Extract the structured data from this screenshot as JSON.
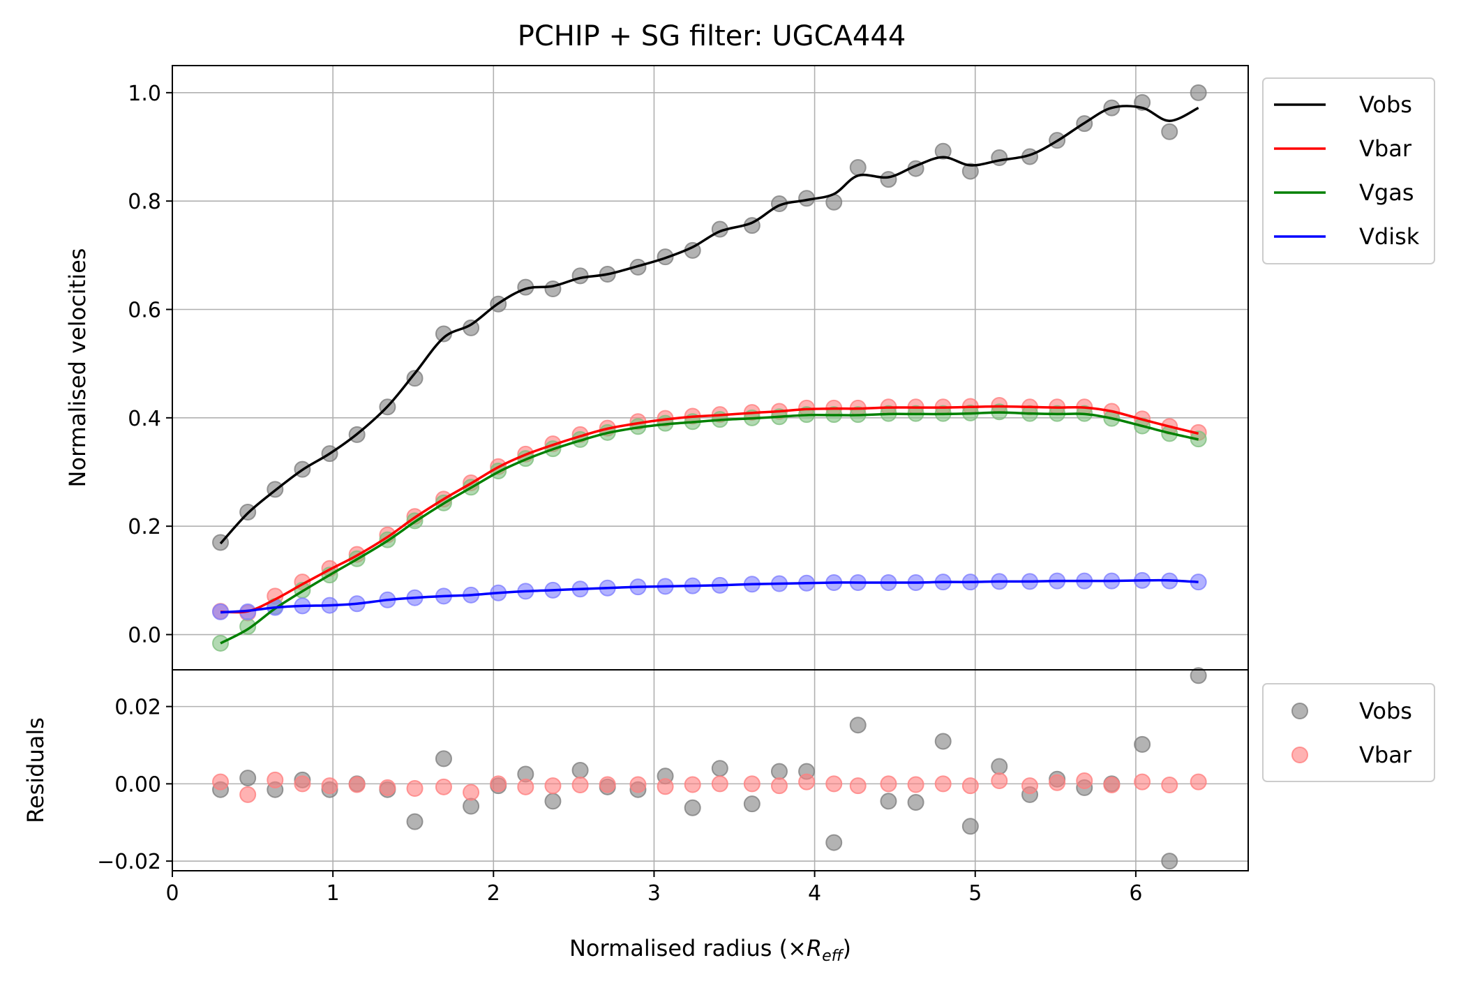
{
  "chart_data": [
    {
      "type": "line",
      "title": "PCHIP + SG filter: UGCA444",
      "xlabel": "Normalised radius (×R_eff)",
      "ylabel": "Normalised velocities",
      "xlim": [
        0,
        6.7
      ],
      "ylim": [
        -0.065,
        1.05
      ],
      "grid": true,
      "legend_position": "outside-right",
      "x_ticks": [
        "0",
        "1",
        "2",
        "3",
        "4",
        "5",
        "6"
      ],
      "y_ticks": [
        "0.0",
        "0.2",
        "0.4",
        "0.6",
        "0.8",
        "1.0"
      ],
      "x": [
        0.3,
        0.47,
        0.64,
        0.81,
        0.98,
        1.15,
        1.34,
        1.51,
        1.69,
        1.86,
        2.03,
        2.2,
        2.37,
        2.54,
        2.71,
        2.9,
        3.07,
        3.24,
        3.41,
        3.61,
        3.78,
        3.95,
        4.12,
        4.27,
        4.46,
        4.63,
        4.8,
        4.97,
        5.15,
        5.34,
        5.51,
        5.68,
        5.85,
        6.04,
        6.21,
        6.39
      ],
      "series": [
        {
          "name": "Vobs",
          "color": "#000000",
          "points": [
            0.17,
            0.226,
            0.268,
            0.305,
            0.334,
            0.369,
            0.42,
            0.473,
            0.555,
            0.566,
            0.61,
            0.641,
            0.638,
            0.662,
            0.665,
            0.678,
            0.697,
            0.709,
            0.748,
            0.755,
            0.795,
            0.805,
            0.798,
            0.862,
            0.84,
            0.86,
            0.892,
            0.855,
            0.88,
            0.882,
            0.912,
            0.943,
            0.972,
            0.982,
            0.928,
            1.0
          ],
          "line": [
            0.168,
            0.224,
            0.266,
            0.304,
            0.334,
            0.37,
            0.421,
            0.482,
            0.548,
            0.572,
            0.611,
            0.638,
            0.643,
            0.658,
            0.665,
            0.68,
            0.695,
            0.715,
            0.744,
            0.76,
            0.792,
            0.802,
            0.813,
            0.847,
            0.844,
            0.865,
            0.881,
            0.866,
            0.875,
            0.885,
            0.911,
            0.944,
            0.972,
            0.972,
            0.948,
            0.972
          ]
        },
        {
          "name": "Vbar",
          "color": "#ff0000",
          "points": [
            0.043,
            0.04,
            0.071,
            0.097,
            0.122,
            0.148,
            0.184,
            0.218,
            0.25,
            0.28,
            0.31,
            0.333,
            0.352,
            0.369,
            0.381,
            0.393,
            0.399,
            0.403,
            0.406,
            0.41,
            0.412,
            0.418,
            0.418,
            0.418,
            0.42,
            0.42,
            0.42,
            0.421,
            0.423,
            0.42,
            0.42,
            0.42,
            0.412,
            0.398,
            0.384,
            0.373
          ],
          "line": [
            0.042,
            0.043,
            0.065,
            0.093,
            0.12,
            0.146,
            0.18,
            0.216,
            0.25,
            0.279,
            0.309,
            0.332,
            0.35,
            0.366,
            0.38,
            0.39,
            0.397,
            0.402,
            0.405,
            0.409,
            0.412,
            0.416,
            0.417,
            0.417,
            0.419,
            0.419,
            0.419,
            0.42,
            0.421,
            0.42,
            0.419,
            0.419,
            0.412,
            0.397,
            0.384,
            0.371
          ]
        },
        {
          "name": "Vgas",
          "color": "#008000",
          "points": [
            -0.016,
            0.015,
            0.052,
            0.082,
            0.11,
            0.14,
            0.175,
            0.21,
            0.243,
            0.272,
            0.302,
            0.325,
            0.343,
            0.36,
            0.373,
            0.384,
            0.39,
            0.393,
            0.397,
            0.4,
            0.402,
            0.406,
            0.406,
            0.406,
            0.408,
            0.408,
            0.408,
            0.409,
            0.411,
            0.408,
            0.408,
            0.408,
            0.399,
            0.385,
            0.371,
            0.361
          ],
          "line": [
            -0.016,
            0.01,
            0.048,
            0.08,
            0.11,
            0.139,
            0.173,
            0.208,
            0.242,
            0.271,
            0.3,
            0.323,
            0.342,
            0.358,
            0.372,
            0.382,
            0.388,
            0.392,
            0.396,
            0.399,
            0.402,
            0.405,
            0.405,
            0.405,
            0.407,
            0.407,
            0.407,
            0.408,
            0.41,
            0.408,
            0.407,
            0.407,
            0.399,
            0.385,
            0.372,
            0.36
          ]
        },
        {
          "name": "Vdisk",
          "color": "#0000ff",
          "points": [
            0.042,
            0.042,
            0.05,
            0.053,
            0.054,
            0.057,
            0.064,
            0.068,
            0.071,
            0.073,
            0.077,
            0.08,
            0.082,
            0.084,
            0.086,
            0.088,
            0.089,
            0.09,
            0.091,
            0.093,
            0.094,
            0.095,
            0.096,
            0.096,
            0.096,
            0.096,
            0.097,
            0.097,
            0.098,
            0.098,
            0.099,
            0.099,
            0.099,
            0.1,
            0.099,
            0.097
          ],
          "line": [
            0.041,
            0.044,
            0.05,
            0.053,
            0.054,
            0.057,
            0.064,
            0.068,
            0.071,
            0.073,
            0.077,
            0.08,
            0.082,
            0.084,
            0.086,
            0.088,
            0.089,
            0.09,
            0.091,
            0.093,
            0.094,
            0.095,
            0.096,
            0.096,
            0.096,
            0.096,
            0.097,
            0.097,
            0.098,
            0.098,
            0.099,
            0.099,
            0.099,
            0.1,
            0.1,
            0.097
          ]
        }
      ]
    },
    {
      "type": "scatter",
      "ylabel": "Residuals",
      "xlim": [
        0,
        6.7
      ],
      "ylim": [
        -0.0225,
        0.0295
      ],
      "grid": true,
      "legend_position": "outside-right",
      "x_ticks": [
        "0",
        "1",
        "2",
        "3",
        "4",
        "5",
        "6"
      ],
      "y_ticks": [
        "−0.02",
        "0.00",
        "0.02"
      ],
      "x": [
        0.3,
        0.47,
        0.64,
        0.81,
        0.98,
        1.15,
        1.34,
        1.51,
        1.69,
        1.86,
        2.03,
        2.2,
        2.37,
        2.54,
        2.71,
        2.9,
        3.07,
        3.24,
        3.41,
        3.61,
        3.78,
        3.95,
        4.12,
        4.27,
        4.46,
        4.63,
        4.8,
        4.97,
        5.15,
        5.34,
        5.51,
        5.68,
        5.85,
        6.04,
        6.21,
        6.39
      ],
      "series": [
        {
          "name": "Vobs",
          "color": "#808080",
          "values": [
            -0.0015,
            0.0015,
            -0.0015,
            0.001,
            -0.0015,
            0.0,
            -0.0015,
            -0.0098,
            0.0065,
            -0.0058,
            -0.0005,
            0.0025,
            -0.0045,
            0.0035,
            -0.0008,
            -0.0015,
            0.002,
            -0.0062,
            0.004,
            -0.0052,
            0.0032,
            0.0032,
            -0.0152,
            0.0152,
            -0.0045,
            -0.0048,
            0.011,
            -0.011,
            0.0045,
            -0.0028,
            0.0012,
            -0.001,
            0.0,
            0.0102,
            -0.02,
            0.028
          ]
        },
        {
          "name": "Vbar",
          "color": "#ff7f7f",
          "values": [
            0.0005,
            -0.0028,
            0.001,
            0.0,
            -0.0005,
            -0.0002,
            -0.001,
            -0.0012,
            -0.0008,
            -0.0022,
            0.0,
            -0.0008,
            -0.0005,
            -0.0003,
            -0.0002,
            -0.0002,
            -0.0007,
            -0.0002,
            0.0,
            0.0,
            -0.0005,
            0.0005,
            0.0,
            -0.0005,
            0.0,
            -0.0002,
            0.0,
            -0.0005,
            0.0008,
            -0.0005,
            0.0003,
            0.0008,
            -0.0003,
            0.0005,
            -0.0003,
            0.0005
          ]
        }
      ]
    }
  ]
}
